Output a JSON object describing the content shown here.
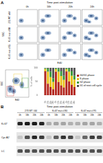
{
  "figure": {
    "panel_a": {
      "label": "A",
      "header": "Time post-stimulation",
      "columns": [
        "0h",
        "16h",
        "20h",
        "24h"
      ],
      "rows": [
        "273 WT #44",
        "Ki-67 mut cl 80",
        "Ki-67 mut cl 95"
      ],
      "y_axis": "SSC",
      "x_axis": "EdU"
    },
    "panel_b": {
      "label": "B",
      "header": "Time post-stimulation",
      "groups": [
        "273 WT #44",
        "Ki-67 mut cl 80",
        "Ki-67 mut cl 95"
      ],
      "times": [
        "0h",
        "16h",
        "20h",
        "24h"
      ],
      "blots": [
        "Ki-67",
        "Cyc A2",
        "LC"
      ]
    }
  },
  "chart_data": {
    "type": "bar",
    "stacked": true,
    "legend": "right",
    "categories": [
      "0h",
      "16h",
      "20h",
      "24h",
      "0h",
      "16h",
      "20h",
      "24h",
      "0h",
      "16h",
      "20h",
      "24h"
    ],
    "y_label": "% of cells",
    "ylim": [
      0,
      100
    ],
    "yticks": [
      0,
      50,
      100
    ],
    "series": [
      {
        "name": "G0/G1 phase",
        "color": "#b3261e",
        "values": [
          88,
          42,
          30,
          22,
          86,
          48,
          36,
          28,
          87,
          50,
          38,
          30
        ]
      },
      {
        "name": "S phase",
        "color": "#e8c21a",
        "values": [
          8,
          44,
          36,
          26,
          9,
          38,
          34,
          28,
          8,
          36,
          33,
          27
        ]
      },
      {
        "name": "G2 phase",
        "color": "#3a9a3a",
        "values": [
          3,
          12,
          20,
          14,
          4,
          11,
          18,
          15,
          4,
          12,
          17,
          15
        ]
      },
      {
        "name": "G1 of next cell cycle",
        "color": "#555555",
        "values": [
          1,
          2,
          14,
          38,
          1,
          3,
          12,
          29,
          1,
          2,
          12,
          28
        ]
      }
    ]
  }
}
